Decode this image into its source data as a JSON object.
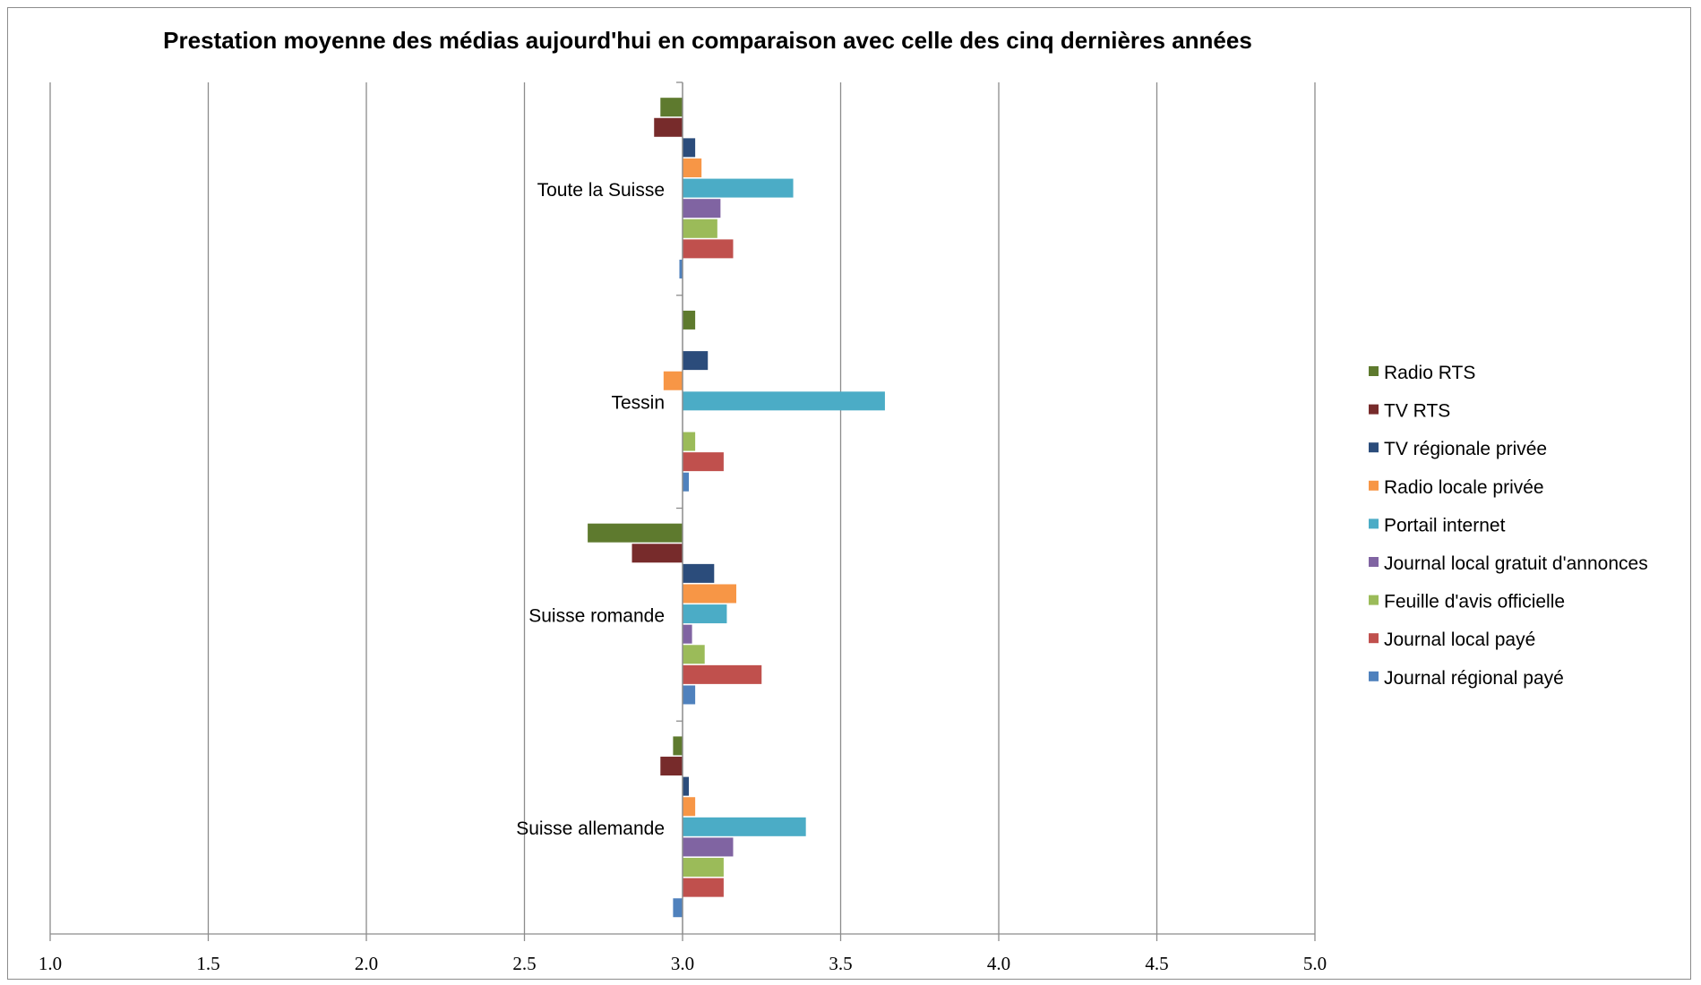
{
  "chart_data": {
    "type": "bar",
    "orientation": "horizontal",
    "title": "Prestation moyenne des médias aujourd'hui en comparaison avec celle des cinq dernières années",
    "categories": [
      "Toute la Suisse",
      "Tessin",
      "Suisse romande",
      "Suisse allemande"
    ],
    "xlim": [
      1.0,
      5.0
    ],
    "baseline": 3.0,
    "x_ticks": [
      "1.0",
      "1.5",
      "2.0",
      "2.5",
      "3.0",
      "3.5",
      "4.0",
      "4.5",
      "5.0"
    ],
    "grid": "vertical",
    "legend_position": "right",
    "series": [
      {
        "name": "Radio RTS",
        "color": "#5e7a2e",
        "values": [
          2.93,
          3.04,
          2.7,
          2.97
        ]
      },
      {
        "name": "TV RTS",
        "color": "#772b2b",
        "values": [
          2.91,
          null,
          2.84,
          2.93
        ]
      },
      {
        "name": "TV régionale privée",
        "color": "#2b4c7b",
        "values": [
          3.04,
          3.08,
          3.1,
          3.02
        ]
      },
      {
        "name": "Radio locale privée",
        "color": "#f79646",
        "values": [
          3.06,
          2.94,
          3.17,
          3.04
        ]
      },
      {
        "name": "Portail internet",
        "color": "#4bacc6",
        "values": [
          3.35,
          3.64,
          3.14,
          3.39
        ]
      },
      {
        "name": "Journal local gratuit d'annonces",
        "color": "#8064a2",
        "values": [
          3.12,
          null,
          3.03,
          3.16
        ]
      },
      {
        "name": "Feuille d'avis officielle",
        "color": "#9bbb59",
        "values": [
          3.11,
          3.04,
          3.07,
          3.13
        ]
      },
      {
        "name": "Journal local payé",
        "color": "#c0504d",
        "values": [
          3.16,
          3.13,
          3.25,
          3.13
        ]
      },
      {
        "name": "Journal régional payé",
        "color": "#4f81bd",
        "values": [
          2.99,
          3.02,
          3.04,
          2.97
        ]
      }
    ]
  }
}
